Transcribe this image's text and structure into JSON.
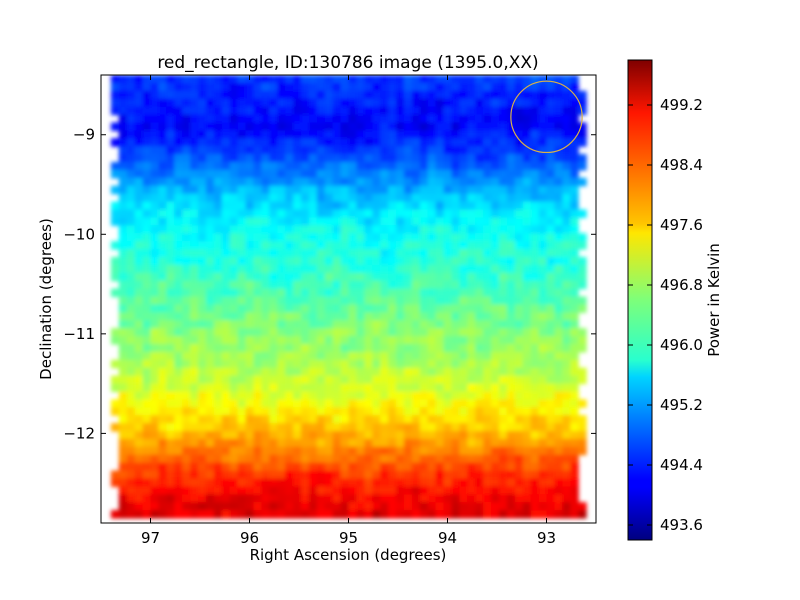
{
  "chart_data": {
    "type": "heatmap",
    "title": "red_rectangle, ID:130786 image (1395.0,XX)",
    "xlabel": "Right Ascension (degrees)",
    "ylabel": "Declination (degrees)",
    "xlim": [
      97.5,
      92.5
    ],
    "ylim": [
      -12.9,
      -8.4
    ],
    "x_ticks": [
      {
        "value": 97,
        "label": "97"
      },
      {
        "value": 96,
        "label": "96"
      },
      {
        "value": 95,
        "label": "95"
      },
      {
        "value": 94,
        "label": "94"
      },
      {
        "value": 93,
        "label": "93"
      }
    ],
    "y_ticks": [
      {
        "value": -9,
        "label": "−9"
      },
      {
        "value": -10,
        "label": "−10"
      },
      {
        "value": -11,
        "label": "−11"
      },
      {
        "value": -12,
        "label": "−12"
      }
    ],
    "grid": false,
    "colorbar": {
      "label": "Power in Kelvin",
      "range": [
        493.4,
        499.8
      ],
      "colormap": "jet",
      "ticks": [
        {
          "value": 493.6,
          "label": "493.6"
        },
        {
          "value": 494.4,
          "label": "494.4"
        },
        {
          "value": 495.2,
          "label": "495.2"
        },
        {
          "value": 496.0,
          "label": "496.0"
        },
        {
          "value": 496.8,
          "label": "496.8"
        },
        {
          "value": 497.6,
          "label": "497.6"
        },
        {
          "value": 498.4,
          "label": "498.4"
        },
        {
          "value": 499.2,
          "label": "499.2"
        }
      ]
    },
    "coverage": {
      "ra": [
        97.4,
        92.6
      ],
      "dec": [
        -12.85,
        -8.4
      ]
    },
    "dec_profile": [
      {
        "dec": -8.5,
        "value": 494.5
      },
      {
        "dec": -8.9,
        "value": 494.2
      },
      {
        "dec": -9.2,
        "value": 494.6
      },
      {
        "dec": -9.5,
        "value": 495.2
      },
      {
        "dec": -9.8,
        "value": 495.7
      },
      {
        "dec": -10.0,
        "value": 495.9
      },
      {
        "dec": -10.4,
        "value": 496.1
      },
      {
        "dec": -10.8,
        "value": 496.5
      },
      {
        "dec": -11.2,
        "value": 496.8
      },
      {
        "dec": -11.6,
        "value": 497.2
      },
      {
        "dec": -12.0,
        "value": 497.8
      },
      {
        "dec": -12.3,
        "value": 498.5
      },
      {
        "dec": -12.6,
        "value": 499.0
      },
      {
        "dec": -12.85,
        "value": 499.2
      }
    ],
    "annotations": [
      {
        "type": "circle",
        "ra": 93.0,
        "dec": -8.82,
        "radius_deg": 0.36,
        "color": "#d8b04a"
      }
    ]
  }
}
